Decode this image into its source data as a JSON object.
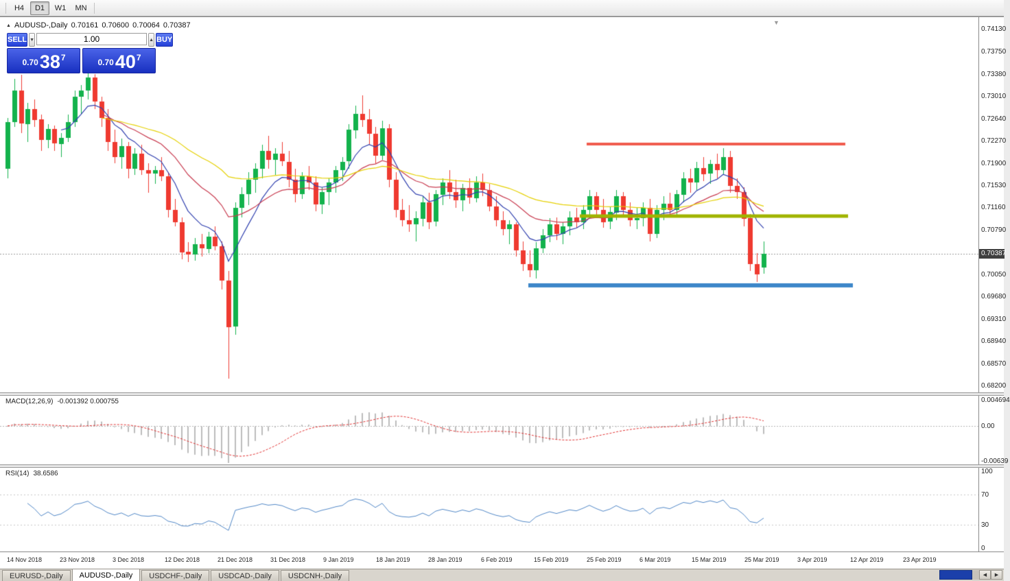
{
  "colors": {
    "candle_up": "#13b24c",
    "candle_down": "#ef3a30",
    "ma_fast": "#2f3fae",
    "ma_mid": "#c83c50",
    "ma_slow": "#e5d000",
    "macd_hist": "#bcbcbc",
    "macd_signal": "#e03030",
    "rsi_line": "#4f86c6",
    "line_resistance": "#f05b4d",
    "line_mid": "#a0b400",
    "line_support": "#3e87c9"
  },
  "toolbar": {
    "timeframes": [
      {
        "label": "H4",
        "active": false
      },
      {
        "label": "D1",
        "active": true
      },
      {
        "label": "W1",
        "active": false
      },
      {
        "label": "MN",
        "active": false
      }
    ]
  },
  "chart_header": {
    "symbol": "AUDUSD-,Daily",
    "open": "0.70161",
    "high": "0.70600",
    "low": "0.70064",
    "close": "0.70387"
  },
  "trade_panel": {
    "sell_label": "SELL",
    "buy_label": "BUY",
    "volume": "1.00",
    "sell_price": {
      "prefix": "0.70",
      "big": "38",
      "sup": "7"
    },
    "buy_price": {
      "prefix": "0.70",
      "big": "40",
      "sup": "7"
    }
  },
  "price_scale": {
    "ticks": [
      "0.74130",
      "0.73750",
      "0.73380",
      "0.73010",
      "0.72640",
      "0.72270",
      "0.71900",
      "0.71530",
      "0.71160",
      "0.70790",
      "0.70050",
      "0.69680",
      "0.69310",
      "0.68940",
      "0.68570",
      "0.68200"
    ],
    "current": "0.70387"
  },
  "macd_panel": {
    "label": "MACD(12,26,9)",
    "values": "-0.001392 0.000755",
    "scale": [
      "0.004694",
      "0.00",
      "-0.00639"
    ]
  },
  "rsi_panel": {
    "label": "RSI(14)",
    "value": "38.6586",
    "scale": [
      "100",
      "70",
      "30",
      "0"
    ]
  },
  "time_axis": {
    "labels": [
      "14 Nov 2018",
      "23 Nov 2018",
      "3 Dec 2018",
      "12 Dec 2018",
      "21 Dec 2018",
      "31 Dec 2018",
      "9 Jan 2019",
      "18 Jan 2019",
      "28 Jan 2019",
      "6 Feb 2019",
      "15 Feb 2019",
      "25 Feb 2019",
      "6 Mar 2019",
      "15 Mar 2019",
      "25 Mar 2019",
      "3 Apr 2019",
      "12 Apr 2019",
      "23 Apr 2019"
    ]
  },
  "tabs": [
    {
      "label": "EURUSD-,Daily",
      "active": false
    },
    {
      "label": "AUDUSD-,Daily",
      "active": true
    },
    {
      "label": "USDCHF-,Daily",
      "active": false
    },
    {
      "label": "USDCAD-,Daily",
      "active": false
    },
    {
      "label": "USDCNH-,Daily",
      "active": false
    }
  ],
  "chart_data": {
    "type": "candlestick",
    "symbol": "AUDUSD",
    "timeframe": "Daily",
    "y_range": [
      0.68087,
      0.74301
    ],
    "current_price": 0.70387,
    "candles_ohlc": [
      [
        0.718,
        0.7265,
        0.7165,
        0.7258
      ],
      [
        0.7258,
        0.733,
        0.725,
        0.731
      ],
      [
        0.731,
        0.7337,
        0.724,
        0.7255
      ],
      [
        0.7255,
        0.729,
        0.7225,
        0.728
      ],
      [
        0.728,
        0.7295,
        0.725,
        0.7262
      ],
      [
        0.7262,
        0.727,
        0.721,
        0.7228
      ],
      [
        0.7228,
        0.7255,
        0.7215,
        0.7246
      ],
      [
        0.7246,
        0.7252,
        0.721,
        0.7222
      ],
      [
        0.7222,
        0.724,
        0.72,
        0.7232
      ],
      [
        0.7232,
        0.727,
        0.7225,
        0.7258
      ],
      [
        0.7258,
        0.731,
        0.725,
        0.73
      ],
      [
        0.73,
        0.732,
        0.727,
        0.731
      ],
      [
        0.731,
        0.7342,
        0.7295,
        0.7332
      ],
      [
        0.7332,
        0.7338,
        0.728,
        0.7292
      ],
      [
        0.7292,
        0.73,
        0.725,
        0.7265
      ],
      [
        0.7265,
        0.728,
        0.721,
        0.7225
      ],
      [
        0.7225,
        0.7245,
        0.719,
        0.72
      ],
      [
        0.72,
        0.723,
        0.718,
        0.7218
      ],
      [
        0.7218,
        0.7225,
        0.7165,
        0.718
      ],
      [
        0.718,
        0.7215,
        0.717,
        0.7205
      ],
      [
        0.7205,
        0.722,
        0.717,
        0.7178
      ],
      [
        0.7178,
        0.719,
        0.714,
        0.7172
      ],
      [
        0.7172,
        0.7185,
        0.7155,
        0.7178
      ],
      [
        0.7178,
        0.72,
        0.716,
        0.7168
      ],
      [
        0.7168,
        0.7175,
        0.71,
        0.7112
      ],
      [
        0.7112,
        0.713,
        0.7085,
        0.7092
      ],
      [
        0.7092,
        0.71,
        0.703,
        0.7042
      ],
      [
        0.7042,
        0.7058,
        0.7025,
        0.7038
      ],
      [
        0.7038,
        0.7065,
        0.7028,
        0.7055
      ],
      [
        0.7055,
        0.7072,
        0.7035,
        0.7048
      ],
      [
        0.7048,
        0.7075,
        0.704,
        0.7068
      ],
      [
        0.7068,
        0.7085,
        0.7045,
        0.7052
      ],
      [
        0.7052,
        0.706,
        0.698,
        0.6995
      ],
      [
        0.6995,
        0.701,
        0.6832,
        0.6918
      ],
      [
        0.6918,
        0.7125,
        0.6905,
        0.7115
      ],
      [
        0.7115,
        0.715,
        0.71,
        0.7138
      ],
      [
        0.7138,
        0.7175,
        0.712,
        0.7162
      ],
      [
        0.7162,
        0.719,
        0.714,
        0.718
      ],
      [
        0.718,
        0.722,
        0.7165,
        0.721
      ],
      [
        0.721,
        0.7235,
        0.718,
        0.7195
      ],
      [
        0.7195,
        0.7215,
        0.717,
        0.7205
      ],
      [
        0.7205,
        0.7225,
        0.7185,
        0.7192
      ],
      [
        0.7192,
        0.721,
        0.715,
        0.7162
      ],
      [
        0.7162,
        0.718,
        0.7125,
        0.7138
      ],
      [
        0.7138,
        0.7175,
        0.713,
        0.7168
      ],
      [
        0.7168,
        0.7185,
        0.7145,
        0.7158
      ],
      [
        0.7158,
        0.7168,
        0.711,
        0.7122
      ],
      [
        0.7122,
        0.715,
        0.7105,
        0.7142
      ],
      [
        0.7142,
        0.7165,
        0.712,
        0.7158
      ],
      [
        0.7158,
        0.7185,
        0.714,
        0.7178
      ],
      [
        0.7178,
        0.72,
        0.716,
        0.7192
      ],
      [
        0.7192,
        0.7255,
        0.718,
        0.7245
      ],
      [
        0.7245,
        0.7285,
        0.723,
        0.7272
      ],
      [
        0.7272,
        0.7302,
        0.725,
        0.7262
      ],
      [
        0.7262,
        0.728,
        0.722,
        0.7238
      ],
      [
        0.7238,
        0.725,
        0.719,
        0.7202
      ],
      [
        0.7202,
        0.726,
        0.7195,
        0.7248
      ],
      [
        0.7248,
        0.7255,
        0.715,
        0.7162
      ],
      [
        0.7162,
        0.7175,
        0.71,
        0.7112
      ],
      [
        0.7112,
        0.713,
        0.7085,
        0.7095
      ],
      [
        0.7095,
        0.712,
        0.7075,
        0.7088
      ],
      [
        0.7088,
        0.711,
        0.706,
        0.7098
      ],
      [
        0.7098,
        0.7135,
        0.7085,
        0.7125
      ],
      [
        0.7125,
        0.714,
        0.708,
        0.7092
      ],
      [
        0.7092,
        0.7145,
        0.7085,
        0.7138
      ],
      [
        0.7138,
        0.7165,
        0.712,
        0.7158
      ],
      [
        0.7158,
        0.7178,
        0.713,
        0.7142
      ],
      [
        0.7142,
        0.7162,
        0.7115,
        0.7128
      ],
      [
        0.7128,
        0.7155,
        0.711,
        0.7148
      ],
      [
        0.7148,
        0.7165,
        0.7122,
        0.7132
      ],
      [
        0.7132,
        0.7168,
        0.7125,
        0.7158
      ],
      [
        0.7158,
        0.7172,
        0.7135,
        0.7145
      ],
      [
        0.7145,
        0.7155,
        0.711,
        0.7118
      ],
      [
        0.7118,
        0.7135,
        0.7085,
        0.7095
      ],
      [
        0.7095,
        0.711,
        0.707,
        0.708
      ],
      [
        0.708,
        0.7095,
        0.7055,
        0.7088
      ],
      [
        0.7088,
        0.7092,
        0.7035,
        0.7045
      ],
      [
        0.7045,
        0.706,
        0.701,
        0.7022
      ],
      [
        0.7022,
        0.7045,
        0.7,
        0.7012
      ],
      [
        0.7012,
        0.7058,
        0.6998,
        0.7048
      ],
      [
        0.7048,
        0.708,
        0.704,
        0.707
      ],
      [
        0.707,
        0.7098,
        0.7058,
        0.7088
      ],
      [
        0.7088,
        0.71,
        0.7062,
        0.7072
      ],
      [
        0.7072,
        0.7092,
        0.7055,
        0.7085
      ],
      [
        0.7085,
        0.711,
        0.707,
        0.71
      ],
      [
        0.71,
        0.7115,
        0.7082,
        0.7092
      ],
      [
        0.7092,
        0.712,
        0.708,
        0.7112
      ],
      [
        0.7112,
        0.7145,
        0.71,
        0.7135
      ],
      [
        0.7135,
        0.7142,
        0.71,
        0.7112
      ],
      [
        0.7112,
        0.713,
        0.7082,
        0.7092
      ],
      [
        0.7092,
        0.7118,
        0.708,
        0.7108
      ],
      [
        0.7108,
        0.7145,
        0.7095,
        0.7135
      ],
      [
        0.7135,
        0.7142,
        0.71,
        0.7112
      ],
      [
        0.7112,
        0.7125,
        0.7085,
        0.7095
      ],
      [
        0.7095,
        0.7115,
        0.708,
        0.7098
      ],
      [
        0.7098,
        0.7125,
        0.7085,
        0.7115
      ],
      [
        0.7115,
        0.713,
        0.706,
        0.7072
      ],
      [
        0.7072,
        0.712,
        0.7065,
        0.7112
      ],
      [
        0.7112,
        0.7135,
        0.7095,
        0.7122
      ],
      [
        0.7122,
        0.714,
        0.71,
        0.7112
      ],
      [
        0.7112,
        0.7145,
        0.71,
        0.7138
      ],
      [
        0.7138,
        0.7175,
        0.7125,
        0.7165
      ],
      [
        0.7165,
        0.718,
        0.714,
        0.7158
      ],
      [
        0.7158,
        0.7192,
        0.7145,
        0.7182
      ],
      [
        0.7182,
        0.72,
        0.716,
        0.7172
      ],
      [
        0.7172,
        0.7195,
        0.7155,
        0.7188
      ],
      [
        0.7188,
        0.7206,
        0.7165,
        0.7178
      ],
      [
        0.7178,
        0.7215,
        0.717,
        0.72
      ],
      [
        0.72,
        0.721,
        0.714,
        0.7152
      ],
      [
        0.7152,
        0.7165,
        0.713,
        0.7142
      ],
      [
        0.7142,
        0.715,
        0.7085,
        0.7098
      ],
      [
        0.7098,
        0.7105,
        0.701,
        0.7022
      ],
      [
        0.7022,
        0.704,
        0.6992,
        0.7005
      ],
      [
        0.70161,
        0.706,
        0.70064,
        0.70387
      ]
    ],
    "moving_averages": [
      {
        "period": 8,
        "type": "ema",
        "color_key": "ma_fast"
      },
      {
        "period": 20,
        "type": "ema",
        "color_key": "ma_mid"
      },
      {
        "period": 45,
        "type": "ema",
        "color_key": "ma_slow"
      }
    ],
    "horizontal_lines": [
      {
        "price": 0.7222,
        "x1": 855,
        "x2": 1232,
        "color_key": "line_resistance",
        "width": 4
      },
      {
        "price": 0.7102,
        "x1": 845,
        "x2": 1236,
        "color_key": "line_mid",
        "width": 5
      },
      {
        "price": 0.6986,
        "x1": 770,
        "x2": 1243,
        "color_key": "line_support",
        "width": 6
      }
    ],
    "macd": {
      "fast": 12,
      "slow": 26,
      "signal": 9,
      "range": [
        -0.0067,
        0.0052
      ]
    },
    "rsi": {
      "period": 14,
      "levels": [
        70,
        30
      ],
      "range": [
        0,
        100
      ]
    }
  }
}
